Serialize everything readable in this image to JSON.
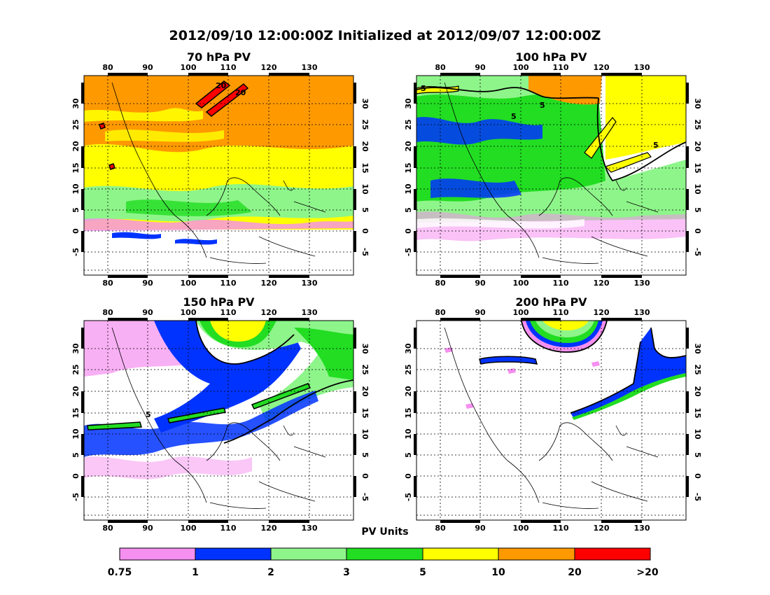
{
  "title": "2012/09/10 12:00:00Z Initialized at 2012/09/07 12:00:00Z",
  "colors": {
    "pink": "#f58ff0",
    "blue": "#0033ff",
    "lightgreen": "#8ef58a",
    "green": "#22dd22",
    "yellow": "#ffff00",
    "orange": "#ff9900",
    "red": "#ff0000"
  },
  "panels": [
    {
      "id": "p70",
      "title": "70 hPa PV"
    },
    {
      "id": "p100",
      "title": "100 hPa PV"
    },
    {
      "id": "p150",
      "title": "150 hPa PV"
    },
    {
      "id": "p200",
      "title": "200 hPa PV"
    }
  ],
  "lon_ticks": [
    "80",
    "90",
    "100",
    "110",
    "120",
    "130"
  ],
  "lat_ticks": [
    "30",
    "25",
    "20",
    "15",
    "10",
    "5",
    "0",
    "-5"
  ],
  "contour_labels": {
    "p70": [
      "20",
      "20"
    ],
    "p100": [
      "5",
      "5",
      "5",
      "5"
    ],
    "p150": [
      "5"
    ]
  },
  "legend": {
    "title": "PV Units",
    "labels": [
      "0.75",
      "1",
      "2",
      "3",
      "5",
      "10",
      "20",
      ">20"
    ]
  }
}
